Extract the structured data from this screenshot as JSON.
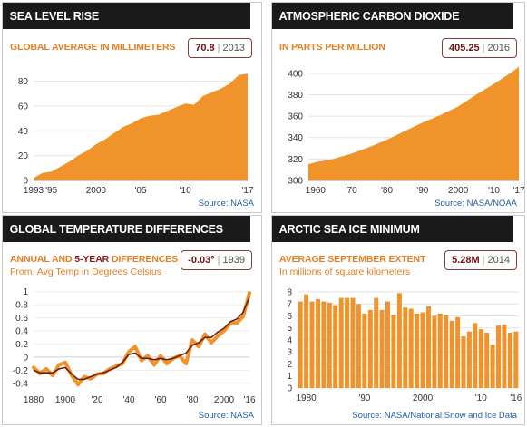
{
  "panels": [
    {
      "id": "sea",
      "title": "SEA LEVEL RISE",
      "subtitle": "GLOBAL AVERAGE IN MILLIMETERS",
      "badge": {
        "value": "70.8",
        "year": "2013"
      },
      "source": "Source: NASA"
    },
    {
      "id": "co2",
      "title": "ATMOSPHERIC CARBON DIOXIDE",
      "subtitle": "IN PARTS PER MILLION",
      "badge": {
        "value": "405.25",
        "year": "2016"
      },
      "source": "Source: NASA/NOAA"
    },
    {
      "id": "temp",
      "title": "GLOBAL TEMPERATURE DIFFERENCES",
      "subtitle_a": "ANNUAL AND",
      "subtitle_b": "5-YEAR",
      "subtitle_c": "DIFFERENCES",
      "subtitle2": "From, Avg Temp in Degrees Celsius",
      "badge": {
        "value": "-0.03°",
        "year": "1939"
      },
      "source": "Source: NASA"
    },
    {
      "id": "ice",
      "title": "ARCTIC SEA ICE MINIMUM",
      "subtitle": "AVERAGE SEPTEMBER EXTENT",
      "subtitle2": "In millions of square kilometers",
      "badge": {
        "value": "5.28M",
        "year": "2014"
      },
      "source": "Source: NASA/National Snow and Ice Data"
    }
  ],
  "colors": {
    "orange": "#f0932b",
    "dark_line": "#6b1f0f",
    "header": "#1a1a1a",
    "accent_text": "#e67e22"
  },
  "chart_data": [
    {
      "type": "area",
      "x": [
        1993,
        1994,
        1995,
        1996,
        1997,
        1998,
        1999,
        2000,
        2001,
        2002,
        2003,
        2004,
        2005,
        2006,
        2007,
        2008,
        2009,
        2010,
        2011,
        2012,
        2013,
        2014,
        2015,
        2016,
        2017
      ],
      "y": [
        2,
        6,
        7,
        11,
        15,
        20,
        24,
        29,
        33,
        38,
        43,
        46,
        50,
        52,
        53,
        56,
        59,
        62,
        61,
        68,
        71,
        74,
        78,
        85,
        86
      ],
      "xticks": [
        "1993",
        "'95",
        "2000",
        "'05",
        "'10",
        "'17"
      ],
      "xtick_values": [
        1993,
        1995,
        2000,
        2005,
        2010,
        2017
      ],
      "yticks": [
        0,
        20,
        40,
        60,
        80
      ],
      "xlim": [
        1993,
        2017
      ],
      "ylim": [
        0,
        95
      ]
    },
    {
      "type": "area",
      "x": [
        1958,
        1960,
        1965,
        1970,
        1975,
        1980,
        1985,
        1990,
        1995,
        2000,
        2005,
        2010,
        2015,
        2017
      ],
      "y": [
        315,
        317,
        320,
        325,
        331,
        338,
        346,
        354,
        361,
        369,
        380,
        390,
        401,
        406
      ],
      "xticks": [
        "1960",
        "'70",
        "'80",
        "'90",
        "2000",
        "'10",
        "'17"
      ],
      "xtick_values": [
        1960,
        1970,
        1980,
        1990,
        2000,
        2010,
        2017
      ],
      "yticks": [
        300,
        320,
        340,
        360,
        380,
        400
      ],
      "xlim": [
        1958,
        2017
      ],
      "ylim": [
        300,
        410
      ]
    },
    {
      "type": "line",
      "series": [
        {
          "name": "Annual",
          "x": [
            1880,
            1884,
            1888,
            1892,
            1896,
            1900,
            1904,
            1908,
            1912,
            1916,
            1920,
            1924,
            1928,
            1932,
            1936,
            1940,
            1944,
            1948,
            1952,
            1956,
            1960,
            1964,
            1968,
            1972,
            1976,
            1980,
            1984,
            1988,
            1992,
            1996,
            2000,
            2004,
            2008,
            2012,
            2016
          ],
          "y": [
            -0.16,
            -0.25,
            -0.18,
            -0.28,
            -0.12,
            -0.08,
            -0.28,
            -0.42,
            -0.3,
            -0.33,
            -0.26,
            -0.25,
            -0.18,
            -0.14,
            -0.1,
            0.08,
            0.16,
            -0.05,
            0.02,
            -0.12,
            0.02,
            -0.1,
            -0.02,
            0.02,
            -0.1,
            0.26,
            0.16,
            0.35,
            0.22,
            0.32,
            0.4,
            0.52,
            0.52,
            0.62,
            0.98
          ]
        },
        {
          "name": "5-year",
          "x": [
            1880,
            1884,
            1888,
            1892,
            1896,
            1900,
            1904,
            1908,
            1912,
            1916,
            1920,
            1924,
            1928,
            1932,
            1936,
            1940,
            1944,
            1948,
            1952,
            1956,
            1960,
            1964,
            1968,
            1972,
            1976,
            1980,
            1984,
            1988,
            1992,
            1996,
            2000,
            2004,
            2008,
            2012,
            2016
          ],
          "y": [
            -0.2,
            -0.24,
            -0.24,
            -0.24,
            -0.18,
            -0.16,
            -0.26,
            -0.34,
            -0.34,
            -0.3,
            -0.26,
            -0.24,
            -0.2,
            -0.16,
            -0.08,
            0.04,
            0.06,
            -0.02,
            -0.02,
            -0.04,
            -0.02,
            -0.04,
            -0.02,
            0.02,
            0.06,
            0.18,
            0.22,
            0.3,
            0.3,
            0.38,
            0.44,
            0.54,
            0.58,
            0.68,
            0.92
          ]
        }
      ],
      "xticks": [
        "1880",
        "1900",
        "'20",
        "'40",
        "'60",
        "'80",
        "2000",
        "'16"
      ],
      "xtick_values": [
        1880,
        1900,
        1920,
        1940,
        1960,
        1980,
        2000,
        2016
      ],
      "yticks": [
        "-0.4",
        "-0.2",
        "0",
        "0.2",
        "0.4",
        "0.6",
        "0.8",
        "1"
      ],
      "ytick_values": [
        -0.4,
        -0.2,
        0,
        0.2,
        0.4,
        0.6,
        0.8,
        1
      ],
      "xlim": [
        1880,
        2016
      ],
      "ylim": [
        -0.5,
        1.05
      ]
    },
    {
      "type": "bar",
      "categories": [
        1979,
        1980,
        1981,
        1982,
        1983,
        1984,
        1985,
        1986,
        1987,
        1988,
        1989,
        1990,
        1991,
        1992,
        1993,
        1994,
        1995,
        1996,
        1997,
        1998,
        1999,
        2000,
        2001,
        2002,
        2003,
        2004,
        2005,
        2006,
        2007,
        2008,
        2009,
        2010,
        2011,
        2012,
        2013,
        2014,
        2015,
        2016
      ],
      "values": [
        7.2,
        7.8,
        7.2,
        7.4,
        7.2,
        7.1,
        6.9,
        7.5,
        7.5,
        7.5,
        7.0,
        6.2,
        6.5,
        7.5,
        6.5,
        7.2,
        6.1,
        7.9,
        6.7,
        6.6,
        6.2,
        6.3,
        6.8,
        6.0,
        6.2,
        6.1,
        5.6,
        5.9,
        4.3,
        4.7,
        5.4,
        4.9,
        4.6,
        3.6,
        5.2,
        5.3,
        4.6,
        4.7
      ],
      "xticks": [
        "1980",
        "'90",
        "2000",
        "'10",
        "'16"
      ],
      "xtick_values": [
        1980,
        1990,
        2000,
        2010,
        2016
      ],
      "yticks": [
        0,
        1,
        2,
        3,
        4,
        5,
        6,
        7,
        8
      ],
      "ylim": [
        0,
        8.3
      ]
    }
  ]
}
